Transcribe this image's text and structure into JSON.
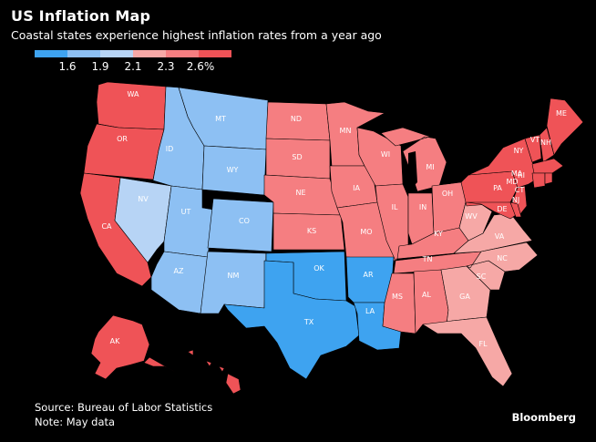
{
  "header": {
    "title": "US Inflation Map",
    "subtitle": "Coastal states experience highest inflation rates from a year ago"
  },
  "legend": {
    "ticks": [
      "1.6",
      "1.9",
      "2.1",
      "2.3",
      "2.6%"
    ],
    "colors": [
      "#3ea3f0",
      "#8dc0f3",
      "#b7d4f5",
      "#f6a8a6",
      "#f57e81",
      "#ef5357"
    ]
  },
  "states": [
    {
      "code": "WA",
      "bin": 5
    },
    {
      "code": "OR",
      "bin": 5
    },
    {
      "code": "CA",
      "bin": 5
    },
    {
      "code": "ID",
      "bin": 1
    },
    {
      "code": "MT",
      "bin": 1
    },
    {
      "code": "NV",
      "bin": 2
    },
    {
      "code": "UT",
      "bin": 1
    },
    {
      "code": "WY",
      "bin": 1
    },
    {
      "code": "CO",
      "bin": 1
    },
    {
      "code": "AZ",
      "bin": 1
    },
    {
      "code": "NM",
      "bin": 1
    },
    {
      "code": "ND",
      "bin": 4
    },
    {
      "code": "SD",
      "bin": 4
    },
    {
      "code": "NE",
      "bin": 4
    },
    {
      "code": "KS",
      "bin": 4
    },
    {
      "code": "MN",
      "bin": 4
    },
    {
      "code": "IA",
      "bin": 4
    },
    {
      "code": "MO",
      "bin": 4
    },
    {
      "code": "WI",
      "bin": 4
    },
    {
      "code": "IL",
      "bin": 4
    },
    {
      "code": "MI",
      "bin": 4
    },
    {
      "code": "IN",
      "bin": 4
    },
    {
      "code": "OH",
      "bin": 4
    },
    {
      "code": "KY",
      "bin": 4
    },
    {
      "code": "TN",
      "bin": 4
    },
    {
      "code": "MS",
      "bin": 4
    },
    {
      "code": "AL",
      "bin": 4
    },
    {
      "code": "OK",
      "bin": 0
    },
    {
      "code": "TX",
      "bin": 0
    },
    {
      "code": "AR",
      "bin": 0
    },
    {
      "code": "LA",
      "bin": 0
    },
    {
      "code": "WV",
      "bin": 3
    },
    {
      "code": "VA",
      "bin": 3
    },
    {
      "code": "NC",
      "bin": 3
    },
    {
      "code": "SC",
      "bin": 3
    },
    {
      "code": "GA",
      "bin": 3
    },
    {
      "code": "FL",
      "bin": 3
    },
    {
      "code": "PA",
      "bin": 5
    },
    {
      "code": "NY",
      "bin": 5
    },
    {
      "code": "NJ",
      "bin": 5
    },
    {
      "code": "DE",
      "bin": 5
    },
    {
      "code": "MD",
      "bin": 5
    },
    {
      "code": "VT",
      "bin": 5
    },
    {
      "code": "NH",
      "bin": 5
    },
    {
      "code": "ME",
      "bin": 5
    },
    {
      "code": "MA",
      "bin": 5
    },
    {
      "code": "RI",
      "bin": 5
    },
    {
      "code": "CT",
      "bin": 5
    },
    {
      "code": "AK",
      "bin": 5
    },
    {
      "code": "HI",
      "bin": 5
    }
  ],
  "footer": {
    "source": "Source: Bureau of Labor Statistics",
    "note": "Note: May data",
    "brand": "Bloomberg"
  }
}
